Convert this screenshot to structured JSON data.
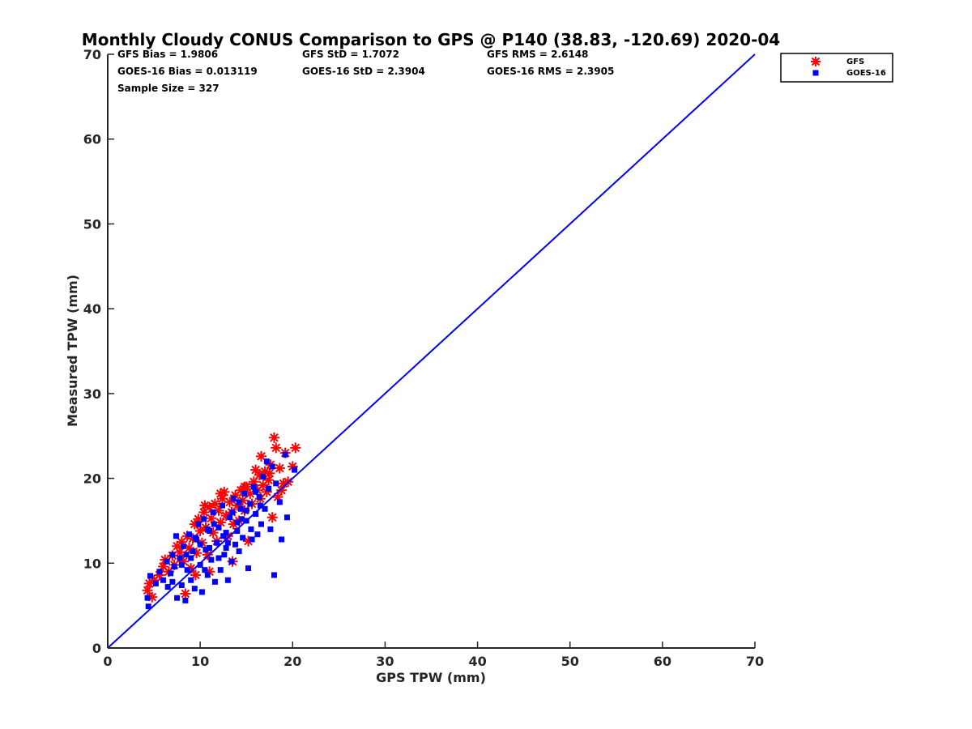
{
  "chart_data": {
    "type": "scatter",
    "title": "Monthly Cloudy CONUS Comparison to GPS @ P140 (38.83, -120.69) 2020-04",
    "xlabel": "GPS TPW (mm)",
    "ylabel": "Measured TPW (mm)",
    "xlim": [
      0,
      70
    ],
    "ylim": [
      0,
      70
    ],
    "xticks": [
      0,
      10,
      20,
      30,
      40,
      50,
      60,
      70
    ],
    "yticks": [
      0,
      10,
      20,
      30,
      40,
      50,
      60,
      70
    ],
    "grid": false,
    "legend_position": "top-right outside",
    "stats": {
      "gfs_bias": "GFS Bias = 1.9806",
      "gfs_std": "GFS StD = 1.7072",
      "gfs_rms": "GFS RMS = 2.6148",
      "goes_bias": "GOES-16 Bias = 0.013119",
      "goes_std": "GOES-16 StD = 2.3904",
      "goes_rms": "GOES-16 RMS = 2.3905",
      "sample_size": "Sample Size = 327"
    },
    "reference_line": {
      "x": [
        0,
        70
      ],
      "y": [
        0,
        70
      ],
      "color": "#0000ff"
    },
    "series": [
      {
        "name": "GFS",
        "marker": "asterisk",
        "color": "#ff0000",
        "points": [
          [
            4.3,
            6.8
          ],
          [
            4.5,
            7.6
          ],
          [
            4.8,
            6.0
          ],
          [
            5.0,
            8.0
          ],
          [
            5.6,
            8.6
          ],
          [
            6.0,
            9.6
          ],
          [
            6.2,
            10.4
          ],
          [
            6.6,
            9.0
          ],
          [
            7.0,
            10.9
          ],
          [
            7.2,
            9.8
          ],
          [
            7.5,
            12.0
          ],
          [
            7.8,
            11.3
          ],
          [
            8.0,
            12.5
          ],
          [
            8.2,
            10.2
          ],
          [
            8.4,
            6.4
          ],
          [
            8.6,
            13.2
          ],
          [
            8.8,
            11.8
          ],
          [
            9.0,
            9.4
          ],
          [
            9.2,
            12.9
          ],
          [
            9.4,
            14.6
          ],
          [
            9.6,
            11.2
          ],
          [
            9.8,
            15.2
          ],
          [
            10.0,
            13.8
          ],
          [
            10.2,
            12.4
          ],
          [
            10.4,
            16.0
          ],
          [
            10.6,
            14.2
          ],
          [
            10.8,
            11.0
          ],
          [
            11.0,
            16.6
          ],
          [
            11.2,
            15.3
          ],
          [
            11.4,
            13.6
          ],
          [
            11.6,
            17.0
          ],
          [
            11.8,
            12.6
          ],
          [
            12.0,
            16.2
          ],
          [
            12.2,
            14.8
          ],
          [
            12.4,
            17.6
          ],
          [
            12.6,
            18.4
          ],
          [
            12.8,
            15.6
          ],
          [
            13.0,
            13.2
          ],
          [
            13.2,
            17.2
          ],
          [
            13.4,
            16.0
          ],
          [
            13.6,
            14.6
          ],
          [
            13.8,
            18.0
          ],
          [
            14.0,
            16.8
          ],
          [
            14.2,
            15.0
          ],
          [
            14.4,
            18.6
          ],
          [
            14.6,
            17.4
          ],
          [
            14.8,
            16.2
          ],
          [
            15.0,
            19.0
          ],
          [
            15.2,
            12.6
          ],
          [
            15.4,
            18.2
          ],
          [
            15.6,
            17.0
          ],
          [
            15.8,
            19.6
          ],
          [
            16.0,
            21.0
          ],
          [
            16.2,
            18.6
          ],
          [
            16.4,
            20.4
          ],
          [
            16.6,
            22.6
          ],
          [
            16.8,
            19.2
          ],
          [
            17.0,
            20.8
          ],
          [
            17.2,
            18.4
          ],
          [
            17.4,
            19.8
          ],
          [
            17.6,
            21.6
          ],
          [
            17.8,
            15.4
          ],
          [
            18.0,
            24.8
          ],
          [
            18.2,
            23.6
          ],
          [
            18.4,
            17.8
          ],
          [
            18.6,
            21.2
          ],
          [
            18.8,
            18.6
          ],
          [
            19.0,
            19.4
          ],
          [
            19.2,
            23.0
          ],
          [
            19.5,
            19.6
          ],
          [
            20.0,
            21.4
          ],
          [
            20.3,
            23.6
          ],
          [
            10.5,
            16.8
          ],
          [
            12.2,
            18.2
          ],
          [
            11.0,
            9.0
          ],
          [
            13.5,
            10.2
          ],
          [
            9.5,
            8.6
          ],
          [
            16.5,
            17.6
          ],
          [
            14.8,
            19.0
          ],
          [
            17.5,
            20.6
          ]
        ]
      },
      {
        "name": "GOES-16",
        "marker": "square",
        "color": "#0000ff",
        "points": [
          [
            4.3,
            5.9
          ],
          [
            4.4,
            4.9
          ],
          [
            4.6,
            8.5
          ],
          [
            5.2,
            7.6
          ],
          [
            5.6,
            9.0
          ],
          [
            6.0,
            8.0
          ],
          [
            6.4,
            10.2
          ],
          [
            6.8,
            8.8
          ],
          [
            7.0,
            11.0
          ],
          [
            7.2,
            9.6
          ],
          [
            7.4,
            13.2
          ],
          [
            7.5,
            5.9
          ],
          [
            7.8,
            10.6
          ],
          [
            8.0,
            7.4
          ],
          [
            8.2,
            12.0
          ],
          [
            8.4,
            5.6
          ],
          [
            8.6,
            9.2
          ],
          [
            8.8,
            13.4
          ],
          [
            9.0,
            8.0
          ],
          [
            9.2,
            11.4
          ],
          [
            9.4,
            7.0
          ],
          [
            9.6,
            12.8
          ],
          [
            9.8,
            14.6
          ],
          [
            10.0,
            9.8
          ],
          [
            10.2,
            6.6
          ],
          [
            10.4,
            15.2
          ],
          [
            10.6,
            11.6
          ],
          [
            10.8,
            8.6
          ],
          [
            11.0,
            13.8
          ],
          [
            11.2,
            10.4
          ],
          [
            11.4,
            16.0
          ],
          [
            11.6,
            7.8
          ],
          [
            11.8,
            12.4
          ],
          [
            12.0,
            14.2
          ],
          [
            12.2,
            9.2
          ],
          [
            12.4,
            16.8
          ],
          [
            12.6,
            11.0
          ],
          [
            12.8,
            13.6
          ],
          [
            13.0,
            8.0
          ],
          [
            13.2,
            15.4
          ],
          [
            13.4,
            10.2
          ],
          [
            13.6,
            17.6
          ],
          [
            13.8,
            12.2
          ],
          [
            14.0,
            14.8
          ],
          [
            14.2,
            11.4
          ],
          [
            14.4,
            16.4
          ],
          [
            14.6,
            13.0
          ],
          [
            14.8,
            18.2
          ],
          [
            15.0,
            15.0
          ],
          [
            15.2,
            9.4
          ],
          [
            15.4,
            17.0
          ],
          [
            15.6,
            12.8
          ],
          [
            15.8,
            19.0
          ],
          [
            16.0,
            15.8
          ],
          [
            16.2,
            13.4
          ],
          [
            16.4,
            17.8
          ],
          [
            16.6,
            14.6
          ],
          [
            16.8,
            20.2
          ],
          [
            17.0,
            16.4
          ],
          [
            17.2,
            22.0
          ],
          [
            17.4,
            18.8
          ],
          [
            17.6,
            14.0
          ],
          [
            17.8,
            21.4
          ],
          [
            18.0,
            8.6
          ],
          [
            18.2,
            19.4
          ],
          [
            18.6,
            17.2
          ],
          [
            18.8,
            12.8
          ],
          [
            19.2,
            22.8
          ],
          [
            19.4,
            15.4
          ],
          [
            20.2,
            21.0
          ],
          [
            9.0,
            10.6
          ],
          [
            10.0,
            12.2
          ],
          [
            11.0,
            11.8
          ],
          [
            12.0,
            10.6
          ],
          [
            13.0,
            12.4
          ],
          [
            14.0,
            13.8
          ],
          [
            15.0,
            16.2
          ],
          [
            16.0,
            18.4
          ],
          [
            8.0,
            9.8
          ],
          [
            9.5,
            13.0
          ],
          [
            10.5,
            9.2
          ],
          [
            11.5,
            14.6
          ],
          [
            12.5,
            13.2
          ],
          [
            13.5,
            16.0
          ],
          [
            14.5,
            15.2
          ],
          [
            15.5,
            14.0
          ],
          [
            16.5,
            16.8
          ],
          [
            7.0,
            7.8
          ],
          [
            6.5,
            7.2
          ],
          [
            8.5,
            11.0
          ],
          [
            10.8,
            14.0
          ],
          [
            12.8,
            11.8
          ],
          [
            14.2,
            17.2
          ]
        ]
      }
    ]
  }
}
